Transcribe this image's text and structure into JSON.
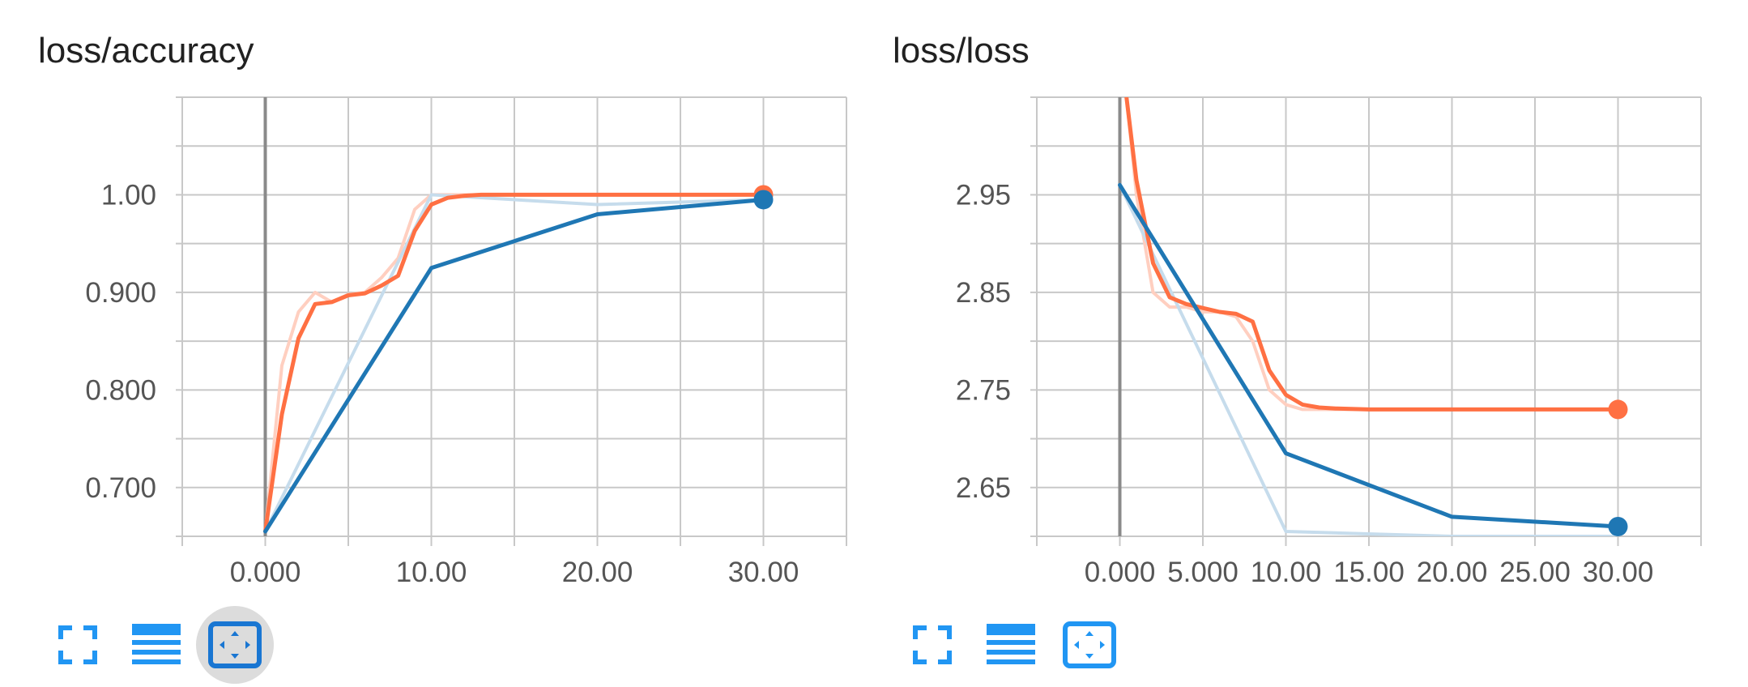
{
  "colors": {
    "orange": "#ff7043",
    "orange_faint": "#ffcfc0",
    "blue": "#1f77b4",
    "blue_faint": "#c6dcec",
    "grid": "#c8c8c8",
    "zero_line": "#8a8a8a",
    "icon": "#2196f3",
    "icon_dark": "#1976d2"
  },
  "toolbar_icons": [
    "fullscreen-icon",
    "list-icon",
    "fit-domain-icon"
  ],
  "chart_data": [
    {
      "type": "line",
      "title": "loss/accuracy",
      "xlabel": "",
      "ylabel": "",
      "xlim": [
        -5,
        35
      ],
      "ylim": [
        0.65,
        1.1
      ],
      "x_ticks": [
        0,
        10,
        20,
        30
      ],
      "x_tick_labels": [
        "0.000",
        "10.00",
        "20.00",
        "30.00"
      ],
      "y_ticks": [
        0.7,
        0.8,
        0.9,
        1.0
      ],
      "y_tick_labels": [
        "0.700",
        "0.800",
        "0.900",
        "1.00"
      ],
      "grid": true,
      "series": [
        {
          "color_key": "orange_faint",
          "width": 4,
          "x": [
            0,
            1,
            2,
            3,
            4,
            5,
            6,
            7,
            8,
            9,
            10,
            11,
            12,
            13,
            14,
            15,
            20,
            30
          ],
          "y": [
            0.655,
            0.825,
            0.88,
            0.9,
            0.89,
            0.898,
            0.9,
            0.915,
            0.935,
            0.985,
            1.0,
            1.0,
            1.0,
            1.0,
            1.0,
            1.0,
            1.0,
            1.0
          ]
        },
        {
          "color_key": "blue_faint",
          "width": 4,
          "x": [
            0,
            10,
            20,
            30
          ],
          "y": [
            0.655,
            1.0,
            0.99,
            0.995
          ]
        },
        {
          "color_key": "orange",
          "width": 5,
          "x": [
            0,
            1,
            2,
            3,
            4,
            5,
            6,
            7,
            8,
            9,
            10,
            11,
            12,
            13,
            14,
            15,
            20,
            30
          ],
          "y": [
            0.655,
            0.775,
            0.853,
            0.888,
            0.89,
            0.897,
            0.899,
            0.907,
            0.917,
            0.963,
            0.99,
            0.997,
            0.999,
            1.0,
            1.0,
            1.0,
            1.0,
            1.0
          ],
          "end_marker": true
        },
        {
          "color_key": "blue",
          "width": 5,
          "x": [
            0,
            10,
            20,
            30
          ],
          "y": [
            0.655,
            0.925,
            0.98,
            0.995
          ],
          "end_marker": true
        }
      ]
    },
    {
      "type": "line",
      "title": "loss/loss",
      "xlabel": "",
      "ylabel": "",
      "xlim": [
        -5,
        35
      ],
      "ylim": [
        2.6,
        3.05
      ],
      "x_ticks": [
        0,
        5,
        10,
        15,
        20,
        25,
        30
      ],
      "x_tick_labels": [
        "0.000",
        "5.000",
        "10.00",
        "15.00",
        "20.00",
        "25.00",
        "30.00"
      ],
      "y_ticks": [
        2.65,
        2.75,
        2.85,
        2.95
      ],
      "y_tick_labels": [
        "2.65",
        "2.75",
        "2.85",
        "2.95"
      ],
      "grid": true,
      "series": [
        {
          "color_key": "orange_faint",
          "width": 4,
          "x": [
            0.4,
            1,
            2,
            3,
            4,
            5,
            6,
            7,
            8,
            9,
            10,
            11,
            12,
            13,
            15,
            20,
            30
          ],
          "y": [
            3.05,
            2.95,
            2.85,
            2.835,
            2.835,
            2.83,
            2.83,
            2.825,
            2.8,
            2.75,
            2.735,
            2.73,
            2.73,
            2.73,
            2.73,
            2.73,
            2.73
          ],
          "clip": true
        },
        {
          "color_key": "blue_faint",
          "width": 4,
          "x": [
            0,
            10,
            20,
            30
          ],
          "y": [
            2.96,
            2.605,
            2.6,
            2.6
          ]
        },
        {
          "color_key": "orange",
          "width": 5,
          "x": [
            0.4,
            1,
            2,
            3,
            4,
            5,
            6,
            7,
            8,
            9,
            10,
            11,
            12,
            13,
            15,
            20,
            30
          ],
          "y": [
            3.05,
            2.965,
            2.88,
            2.845,
            2.838,
            2.834,
            2.83,
            2.828,
            2.82,
            2.77,
            2.745,
            2.735,
            2.732,
            2.731,
            2.73,
            2.73,
            2.73
          ],
          "end_marker": true,
          "clip": true
        },
        {
          "color_key": "blue",
          "width": 5,
          "x": [
            0,
            10,
            20,
            30
          ],
          "y": [
            2.96,
            2.685,
            2.62,
            2.61
          ],
          "end_marker": true
        }
      ]
    }
  ]
}
